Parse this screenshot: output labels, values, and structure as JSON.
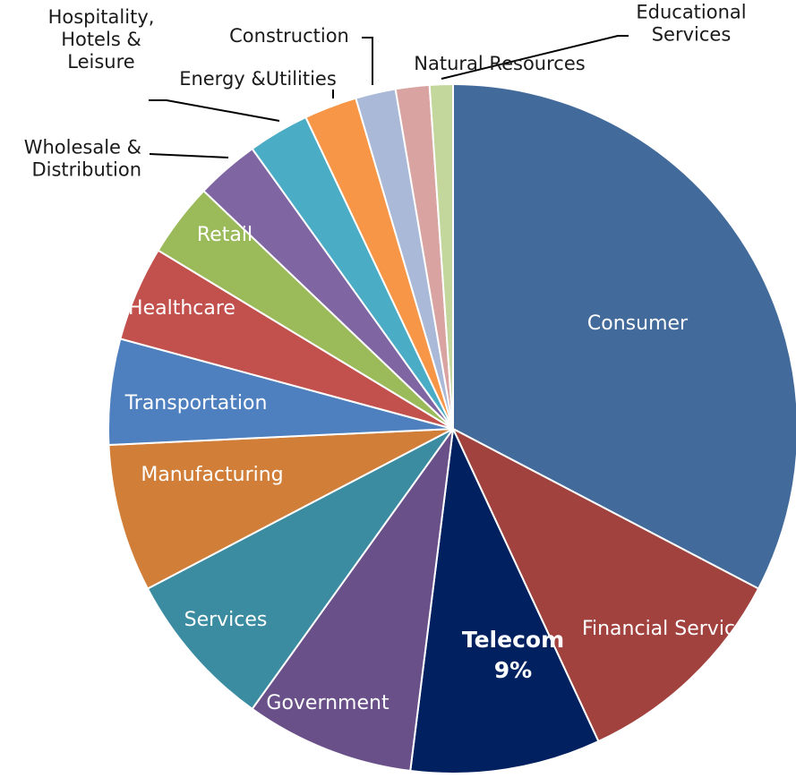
{
  "chart_data": {
    "type": "pie",
    "title": "",
    "start_angle_deg": 0,
    "direction": "clockwise",
    "slices": [
      {
        "label": "Consumer",
        "value": 33,
        "color": "#426A9A"
      },
      {
        "label": "Financial Services",
        "value": 10.5,
        "color": "#A1423F"
      },
      {
        "label": "Telecom",
        "value": 9,
        "display": "9%",
        "color": "#002060",
        "emphasis": true
      },
      {
        "label": "Government",
        "value": 8,
        "color": "#6A5089"
      },
      {
        "label": "Services",
        "value": 7.5,
        "color": "#3C8CA1"
      },
      {
        "label": "Manufacturing",
        "value": 7,
        "color": "#D17E38"
      },
      {
        "label": "Transportation",
        "value": 5,
        "color": "#4E7FBE"
      },
      {
        "label": "Healthcare",
        "value": 4.5,
        "color": "#C2504D"
      },
      {
        "label": "Retail",
        "value": 3.5,
        "color": "#9BBA59"
      },
      {
        "label": "Wholesale & Distribution",
        "value": 3,
        "color": "#7F65A2"
      },
      {
        "label": "Hospitality, Hotels & Leisure",
        "value": 2.9,
        "color": "#4AACC5"
      },
      {
        "label": "Energy &Utilities",
        "value": 2.5,
        "color": "#F79646"
      },
      {
        "label": "Construction",
        "value": 1.9,
        "color": "#AAB9D8"
      },
      {
        "label": "Natural Resources",
        "value": 1.6,
        "color": "#D9A3A2"
      },
      {
        "label": "Educational Services",
        "value": 1.1,
        "color": "#C3D69B"
      }
    ]
  }
}
